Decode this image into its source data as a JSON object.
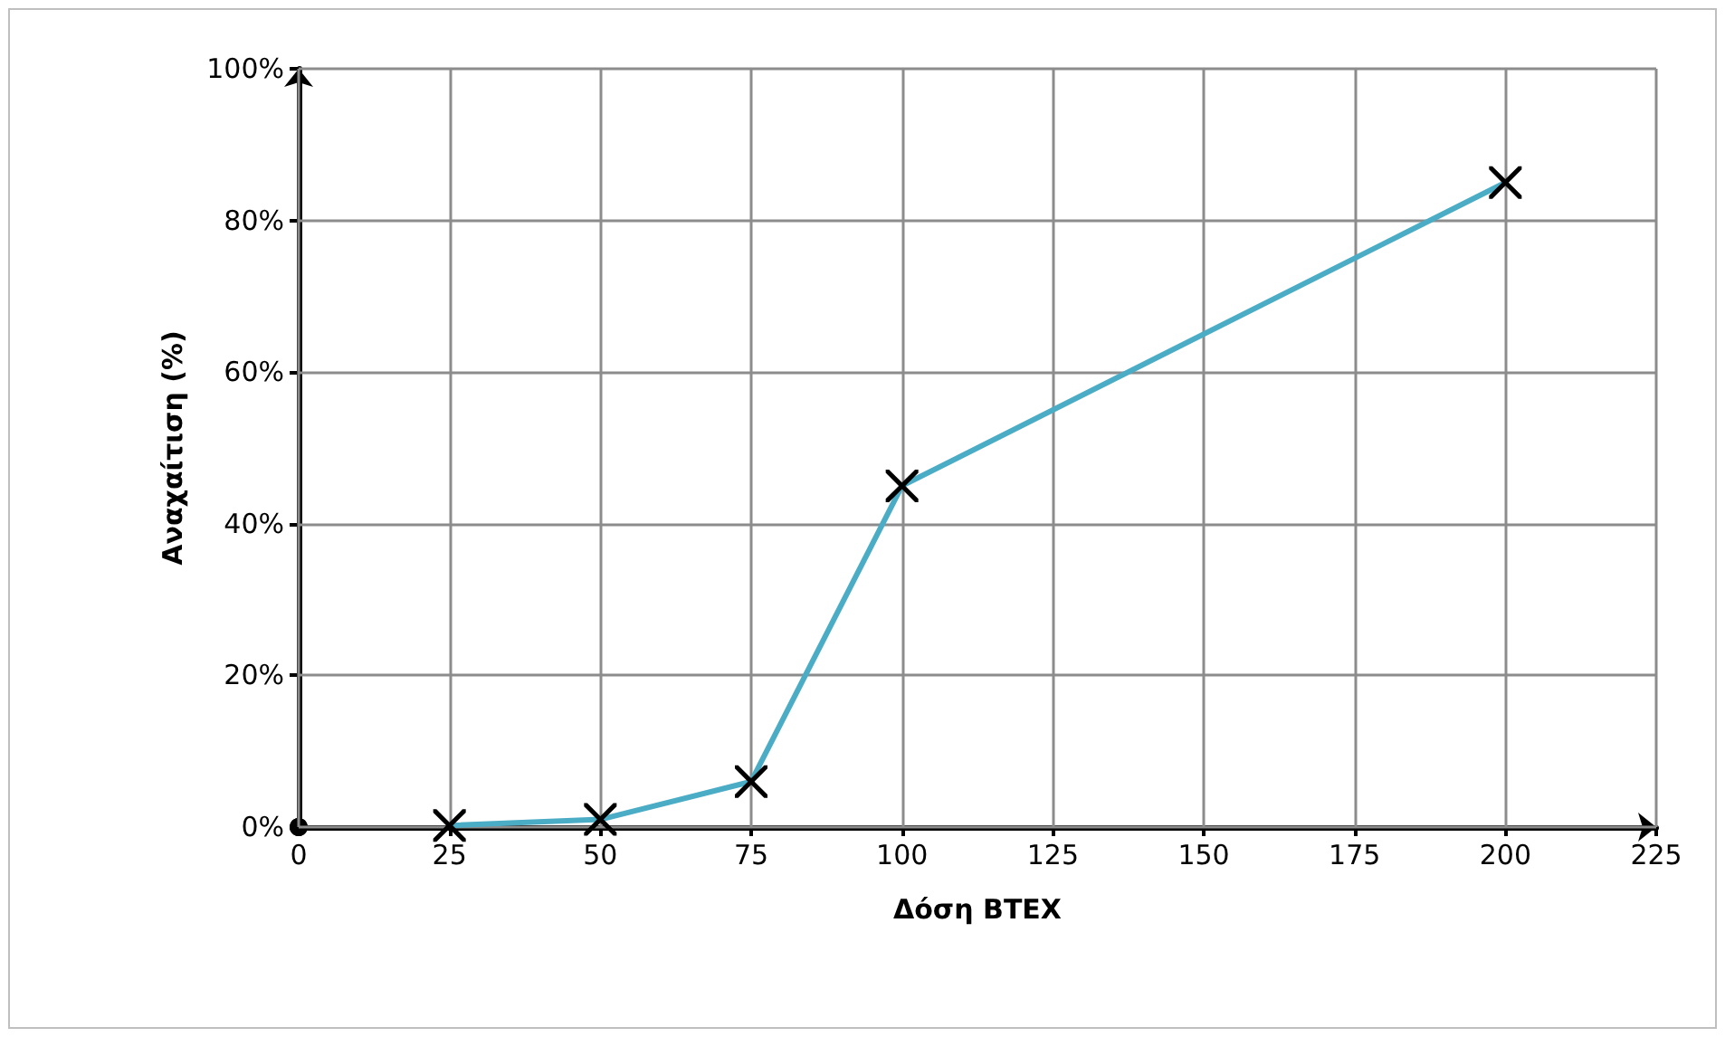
{
  "chart_data": {
    "type": "line",
    "xlabel": "Δόση BTEX",
    "ylabel": "Αναχαίτιση (%)",
    "x": [
      25,
      50,
      75,
      100,
      200
    ],
    "series": [
      {
        "color": "#4bacc6",
        "values": [
          0.2,
          1,
          6,
          45,
          85
        ]
      }
    ],
    "xlim": [
      0,
      225
    ],
    "xticks": [
      0,
      25,
      50,
      75,
      100,
      125,
      150,
      175,
      200,
      225
    ],
    "ylim": [
      0,
      100
    ],
    "yticks": [
      {
        "value": 0,
        "label": "0%"
      },
      {
        "value": 20,
        "label": "20%"
      },
      {
        "value": 40,
        "label": "40%"
      },
      {
        "value": 60,
        "label": "60%"
      },
      {
        "value": 80,
        "label": "80%"
      },
      {
        "value": 100,
        "label": "100%"
      }
    ],
    "grid": true,
    "marker": "cross"
  }
}
